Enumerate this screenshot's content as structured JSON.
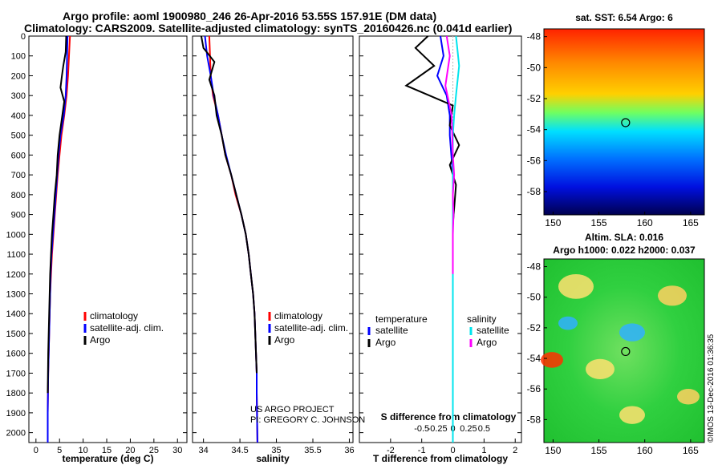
{
  "title_line1": "Argo profile: aoml 1900980_246 26-Apr-2016 53.55S 157.91E (DM data)",
  "title_line2": "Climatology: CARS2009. Satellite-adjusted climatology: synTS_20160426.nc (0.041d earlier)",
  "credit_line1": "US ARGO PROJECT",
  "credit_line2": "PI: GREGORY C. JOHNSON",
  "stamp": "©IMOS 13-Dec-2016 01:36:35",
  "colors": {
    "climatology": "#ff0000",
    "satellite": "#0000ff",
    "argo": "#000000",
    "sal_satellite": "#00e5ee",
    "sal_argo": "#ff00ff"
  },
  "chart_data": [
    {
      "type": "line",
      "xlabel": "temperature (deg C)",
      "xticks": [
        "0",
        "5",
        "10",
        "15",
        "20",
        "25",
        "30"
      ],
      "xlim": [
        -1.5,
        32
      ],
      "ylim": [
        2050,
        0
      ],
      "yticks": [
        "0",
        "100",
        "200",
        "300",
        "400",
        "500",
        "600",
        "700",
        "800",
        "900",
        "1000",
        "1100",
        "1200",
        "1300",
        "1400",
        "1500",
        "1600",
        "1700",
        "1800",
        "1900",
        "2000"
      ],
      "legend": [
        "climatology",
        "satellite-adj. clim.",
        "Argo"
      ],
      "series": [
        {
          "name": "climatology",
          "color": "#ff0000",
          "x": [
            7.2,
            7.0,
            6.8,
            6.5,
            6.0,
            5.4,
            5.0,
            4.6,
            4.3,
            4.0,
            3.7,
            3.4,
            3.2,
            3.0,
            2.9,
            2.8,
            2.7,
            2.6,
            2.55,
            2.5,
            2.5
          ],
          "y": [
            0,
            100,
            200,
            300,
            400,
            500,
            600,
            700,
            800,
            900,
            1000,
            1100,
            1200,
            1300,
            1400,
            1500,
            1600,
            1700,
            1800,
            1900,
            2050
          ]
        },
        {
          "name": "satellite-adj. clim.",
          "color": "#0000ff",
          "x": [
            6.7,
            6.6,
            6.5,
            6.3,
            5.9,
            5.2,
            4.8,
            4.5,
            4.2,
            3.9,
            3.6,
            3.3,
            3.1,
            3.0,
            2.9,
            2.8,
            2.7,
            2.6,
            2.55,
            2.5,
            2.5
          ],
          "y": [
            0,
            100,
            200,
            300,
            400,
            500,
            600,
            700,
            800,
            900,
            1000,
            1100,
            1200,
            1300,
            1400,
            1500,
            1600,
            1700,
            1800,
            1900,
            2050
          ]
        },
        {
          "name": "Argo",
          "color": "#000000",
          "x": [
            6.4,
            6.3,
            5.8,
            5.5,
            5.2,
            6.0,
            5.0,
            4.6,
            4.4,
            4.0,
            3.7,
            3.4,
            3.2,
            3.0,
            2.9,
            2.8,
            2.7,
            2.6,
            2.55,
            2.5
          ],
          "y": [
            0,
            80,
            150,
            200,
            260,
            330,
            500,
            600,
            700,
            800,
            900,
            1000,
            1100,
            1200,
            1300,
            1400,
            1500,
            1600,
            1700,
            1800
          ]
        }
      ]
    },
    {
      "type": "line",
      "xlabel": "salinity",
      "xticks": [
        "34",
        "34.5",
        "35",
        "35.5",
        "36"
      ],
      "xlim": [
        33.85,
        36.05
      ],
      "ylim": [
        2050,
        0
      ],
      "legend": [
        "climatology",
        "satellite-adj. clim.",
        "Argo"
      ],
      "series": [
        {
          "name": "climatology",
          "color": "#ff0000",
          "x": [
            34.08,
            34.09,
            34.1,
            34.13,
            34.2,
            34.25,
            34.3,
            34.38,
            34.44,
            34.52,
            34.58,
            34.62,
            34.65,
            34.68,
            34.7,
            34.71,
            34.72,
            34.73,
            34.73,
            34.74
          ],
          "y": [
            0,
            100,
            200,
            300,
            400,
            500,
            600,
            700,
            800,
            900,
            1000,
            1100,
            1200,
            1300,
            1400,
            1500,
            1600,
            1700,
            1800,
            2050
          ]
        },
        {
          "name": "satellite-adj. clim.",
          "color": "#0000ff",
          "x": [
            34.02,
            34.05,
            34.1,
            34.14,
            34.2,
            34.25,
            34.31,
            34.38,
            34.45,
            34.52,
            34.58,
            34.62,
            34.65,
            34.68,
            34.7,
            34.71,
            34.72,
            34.73,
            34.73,
            34.74
          ],
          "y": [
            0,
            100,
            200,
            300,
            400,
            500,
            600,
            700,
            800,
            900,
            1000,
            1100,
            1200,
            1300,
            1400,
            1500,
            1600,
            1700,
            1800,
            2050
          ]
        },
        {
          "name": "Argo",
          "color": "#000000",
          "x": [
            33.97,
            34.0,
            34.15,
            34.08,
            34.15,
            34.18,
            34.25,
            34.3,
            34.38,
            34.45,
            34.52,
            34.58,
            34.62,
            34.65,
            34.68,
            34.7,
            34.71,
            34.72,
            34.73
          ],
          "y": [
            0,
            60,
            130,
            220,
            300,
            400,
            500,
            600,
            700,
            800,
            900,
            1000,
            1100,
            1200,
            1300,
            1400,
            1500,
            1600,
            1700
          ]
        }
      ]
    },
    {
      "type": "line",
      "xlabel": "T difference from climatology",
      "x2label": "S difference from climatology",
      "xticks": [
        "-2",
        "-1",
        "0",
        "1",
        "2"
      ],
      "x2ticks": [
        "-0.5",
        "-0.25",
        "0",
        "0.25",
        "0.5"
      ],
      "xlim": [
        -3,
        2.2
      ],
      "ylim": [
        2050,
        0
      ],
      "legend_temperature_title": "temperature",
      "legend_salinity_title": "salinity",
      "legend_temperature": [
        "satellite",
        "Argo"
      ],
      "legend_salinity": [
        "satellite",
        "Argo"
      ],
      "series": [
        {
          "name": "satellite",
          "quantity": "T",
          "color": "#0000ff",
          "x": [
            -0.4,
            -0.3,
            -0.5,
            -0.2,
            -0.1,
            -0.1,
            -0.05,
            0.0,
            0.0,
            0.0,
            0.0,
            0.0,
            0.0,
            0.0,
            0.0,
            0.0
          ],
          "y": [
            0,
            100,
            200,
            300,
            400,
            500,
            600,
            700,
            800,
            900,
            1000,
            1200,
            1400,
            1600,
            1800,
            2050
          ]
        },
        {
          "name": "Argo",
          "quantity": "T",
          "color": "#000000",
          "x": [
            -0.8,
            -1.2,
            -0.6,
            -1.5,
            0.0,
            -0.1,
            0.2,
            -0.1,
            0.1,
            0.05,
            0.0,
            0.0,
            0.0,
            0.0
          ],
          "y": [
            0,
            60,
            150,
            250,
            350,
            450,
            550,
            650,
            750,
            850,
            950,
            1050,
            1200,
            1400
          ]
        },
        {
          "name": "satellite",
          "quantity": "S",
          "color": "#00e5ee",
          "x": [
            0.05,
            0.07,
            0.1,
            0.05,
            0.02,
            0.0,
            0.0,
            0.0,
            0.0,
            0.0,
            0.0,
            0.0,
            0.0,
            0.0,
            0.0
          ],
          "y": [
            0,
            60,
            150,
            300,
            400,
            500,
            600,
            700,
            800,
            900,
            1000,
            1200,
            1500,
            1800,
            2050
          ]
        },
        {
          "name": "Argo",
          "quantity": "S",
          "color": "#ff00ff",
          "x": [
            -0.1,
            -0.05,
            -0.12,
            -0.02,
            0.0,
            0.02,
            0.0,
            0.01,
            0.0,
            0.0,
            0.0
          ],
          "y": [
            0,
            100,
            250,
            400,
            600,
            700,
            800,
            900,
            1000,
            1100,
            1200
          ]
        }
      ]
    },
    {
      "type": "heatmap",
      "title": "sat. SST: 6.54 Argo: 6",
      "xticks": [
        "150",
        "155",
        "160",
        "165"
      ],
      "yticks": [
        "-48",
        "-50",
        "-52",
        "-54",
        "-56",
        "-58"
      ],
      "xlim": [
        149,
        166.5
      ],
      "ylim": [
        -47.5,
        -59.5
      ],
      "argo_position": {
        "lon": 157.91,
        "lat": -53.55
      }
    },
    {
      "type": "heatmap",
      "title": "Altim. SLA: 0.016",
      "subtitle": "Argo h1000: 0.022 h2000: 0.037",
      "xticks": [
        "150",
        "155",
        "160",
        "165"
      ],
      "yticks": [
        "-48",
        "-50",
        "-52",
        "-54",
        "-56",
        "-58"
      ],
      "xlim": [
        149,
        166.5
      ],
      "ylim": [
        -47.5,
        -59.5
      ],
      "argo_position": {
        "lon": 157.91,
        "lat": -53.55
      }
    }
  ]
}
